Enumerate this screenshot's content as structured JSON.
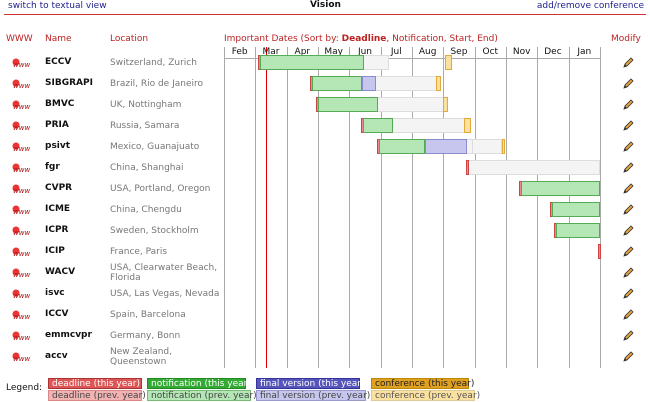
{
  "header": {
    "textual_view": "switch to textual view",
    "title": "Vision",
    "add_remove": "add/remove conference"
  },
  "columns": {
    "www": "WWW",
    "name": "Name",
    "location": "Location",
    "dates_prefix": "Important Dates (Sort by: ",
    "dates_deadline": "Deadline",
    "dates_suffix": ", Notification, Start, End)",
    "modify": "Modify"
  },
  "months": [
    "Feb",
    "Mar",
    "Apr",
    "May",
    "Jun",
    "Jul",
    "Aug",
    "Sep",
    "Oct",
    "Nov",
    "Dec",
    "Jan"
  ],
  "conferences": [
    {
      "name": "ECCV",
      "location": "Switzerland, Zurich"
    },
    {
      "name": "SIBGRAPI",
      "location": "Brazil, Rio de Janeiro"
    },
    {
      "name": "BMVC",
      "location": "UK, Nottingham"
    },
    {
      "name": "PRIA",
      "location": "Russia, Samara"
    },
    {
      "name": "psivt",
      "location": "Mexico, Guanajuato"
    },
    {
      "name": "fgr",
      "location": "China, Shanghai"
    },
    {
      "name": "CVPR",
      "location": "USA, Portland, Oregon"
    },
    {
      "name": "ICME",
      "location": "China, Chengdu"
    },
    {
      "name": "ICPR",
      "location": "Sweden, Stockholm"
    },
    {
      "name": "ICIP",
      "location": "France, Paris"
    },
    {
      "name": "WACV",
      "location": "USA, Clearwater Beach, Florida"
    },
    {
      "name": "isvc",
      "location": "USA, Las Vegas, Nevada"
    },
    {
      "name": "ICCV",
      "location": "Spain, Barcelona"
    },
    {
      "name": "emmcvpr",
      "location": "Germany, Bonn"
    },
    {
      "name": "accv",
      "location": "New Zealand, Queenstown"
    }
  ],
  "legend": {
    "label": "Legend:",
    "deadline_this": "deadline (this year)",
    "deadline_prev": "deadline (prev. year)",
    "notification_this": "notification (this year)",
    "notification_prev": "notification (prev. year)",
    "final_this": "final version (this year)",
    "final_prev": "final version (prev. year)",
    "conference_this": "conference (this year)",
    "conference_prev": "conference (prev. year)"
  },
  "colors": {
    "deadline_this": "#d55",
    "deadline_prev": "#f2b3b3",
    "notification_this": "#3a3",
    "notification_prev": "#b5e6b5",
    "final_this": "#55b",
    "final_prev": "#c6c6ee",
    "conference_this": "#e0a020",
    "conference_prev": "#fbe1a0"
  }
}
